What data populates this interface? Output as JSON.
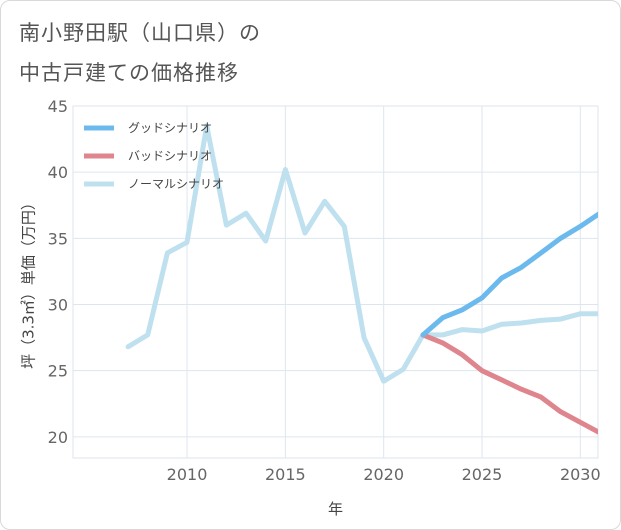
{
  "title": {
    "line1": "南小野田駅（山口県）の",
    "line2": "中古戸建ての価格推移"
  },
  "colors": {
    "good": "#6cb9ee",
    "bad": "#de858e",
    "normal": "#bfe0ee",
    "grid": "#dde6ee",
    "border": "#d9d9d9"
  },
  "chart_data": {
    "type": "line",
    "title": "南小野田駅（山口県）の中古戸建ての価格推移",
    "xlabel": "年",
    "ylabel": "坪（3.3㎡）単価（万円）",
    "xlim": [
      2004.2,
      2030.9
    ],
    "ylim": [
      18.4,
      45
    ],
    "xticks": [
      2010,
      2015,
      2020,
      2025,
      2030
    ],
    "xtick_labels": [
      "2010",
      "2015",
      "2020",
      "2025",
      "2030"
    ],
    "yticks": [
      20,
      25,
      30,
      35,
      40,
      45
    ],
    "ytick_labels": [
      "20",
      "25",
      "30",
      "35",
      "40",
      "45"
    ],
    "legend_position": "top-left",
    "series": [
      {
        "key": "good",
        "name": "グッドシナリオ",
        "x": [
          2022,
          2023,
          2024,
          2025,
          2026,
          2027,
          2028,
          2029,
          2030,
          2031
        ],
        "y": [
          27.7,
          29.0,
          29.6,
          30.5,
          32.0,
          32.8,
          33.9,
          35.0,
          35.9,
          36.9
        ]
      },
      {
        "key": "bad",
        "name": "バッドシナリオ",
        "x": [
          2022,
          2023,
          2024,
          2025,
          2026,
          2027,
          2028,
          2029,
          2030,
          2031
        ],
        "y": [
          27.7,
          27.1,
          26.2,
          25.0,
          24.3,
          23.6,
          23.0,
          21.9,
          21.1,
          20.3
        ]
      },
      {
        "key": "normal",
        "name": "ノーマルシナリオ",
        "x": [
          2007,
          2008,
          2009,
          2010,
          2011,
          2012,
          2013,
          2014,
          2015,
          2016,
          2017,
          2018,
          2019,
          2020,
          2021,
          2022,
          2023,
          2024,
          2025,
          2026,
          2027,
          2028,
          2029,
          2030,
          2031
        ],
        "y": [
          26.8,
          27.7,
          33.9,
          34.7,
          43.5,
          36.0,
          36.9,
          34.8,
          40.2,
          35.4,
          37.8,
          35.9,
          27.5,
          24.2,
          25.1,
          27.7,
          27.7,
          28.1,
          28.0,
          28.5,
          28.6,
          28.8,
          28.9,
          29.3,
          29.3
        ]
      }
    ]
  }
}
